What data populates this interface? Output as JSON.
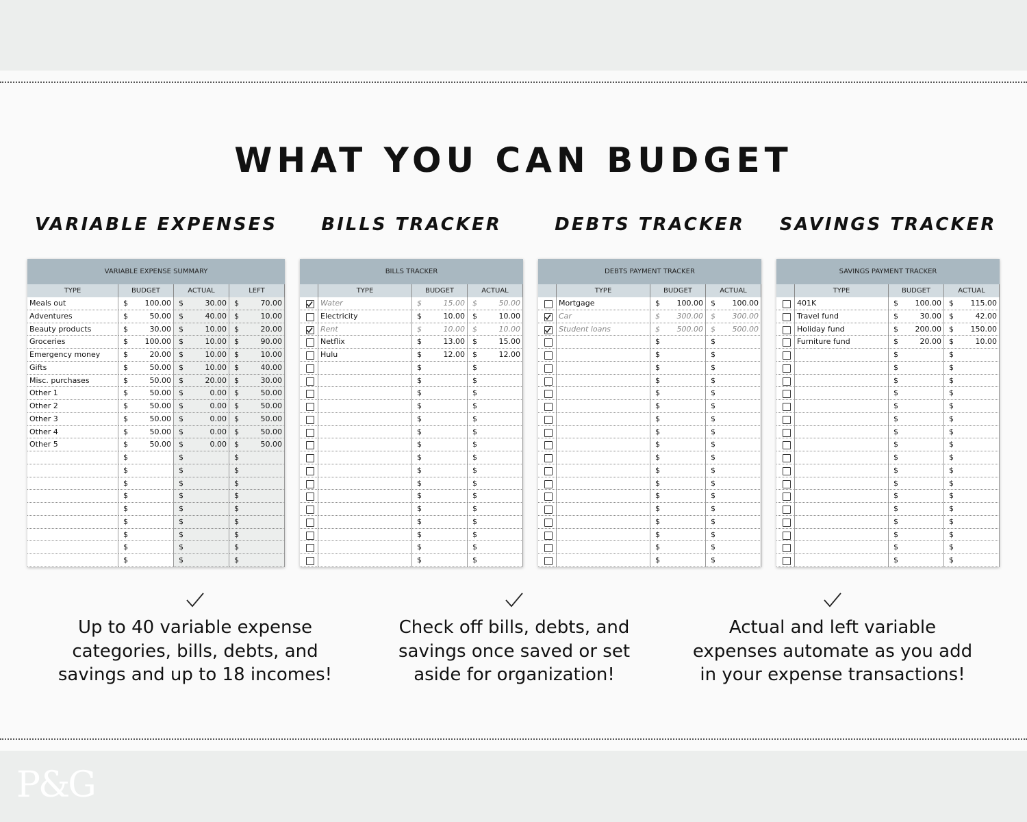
{
  "header": {
    "title": "WHAT YOU CAN BUDGET"
  },
  "currency": "$",
  "sections": [
    {
      "heading": "VARIABLE EXPENSES",
      "table": {
        "title": "VARIABLE EXPENSE SUMMARY",
        "columns": [
          "TYPE",
          "BUDGET",
          "ACTUAL",
          "LEFT"
        ],
        "rows": [
          {
            "cells": [
              "Meals out",
              "100.00",
              "30.00",
              "70.00"
            ]
          },
          {
            "cells": [
              "Adventures",
              "50.00",
              "40.00",
              "10.00"
            ]
          },
          {
            "cells": [
              "Beauty products",
              "30.00",
              "10.00",
              "20.00"
            ]
          },
          {
            "cells": [
              "Groceries",
              "100.00",
              "10.00",
              "90.00"
            ]
          },
          {
            "cells": [
              "Emergency money",
              "20.00",
              "10.00",
              "10.00"
            ]
          },
          {
            "cells": [
              "Gifts",
              "50.00",
              "10.00",
              "40.00"
            ]
          },
          {
            "cells": [
              "Misc. purchases",
              "50.00",
              "20.00",
              "30.00"
            ]
          },
          {
            "cells": [
              "Other 1",
              "50.00",
              "0.00",
              "50.00"
            ]
          },
          {
            "cells": [
              "Other 2",
              "50.00",
              "0.00",
              "50.00"
            ]
          },
          {
            "cells": [
              "Other 3",
              "50.00",
              "0.00",
              "50.00"
            ]
          },
          {
            "cells": [
              "Other 4",
              "50.00",
              "0.00",
              "50.00"
            ]
          },
          {
            "cells": [
              "Other 5",
              "50.00",
              "0.00",
              "50.00"
            ]
          }
        ]
      }
    },
    {
      "heading": "BILLS TRACKER",
      "table": {
        "title": "BILLS TRACKER",
        "columns": [
          "TYPE",
          "BUDGET",
          "ACTUAL"
        ],
        "rows": [
          {
            "checked": true,
            "cells": [
              "Water",
              "15.00",
              "50.00"
            ]
          },
          {
            "checked": false,
            "cells": [
              "Electricity",
              "10.00",
              "10.00"
            ]
          },
          {
            "checked": true,
            "cells": [
              "Rent",
              "10.00",
              "10.00"
            ]
          },
          {
            "checked": false,
            "cells": [
              "Netflix",
              "13.00",
              "15.00"
            ]
          },
          {
            "checked": false,
            "cells": [
              "Hulu",
              "12.00",
              "12.00"
            ]
          }
        ]
      }
    },
    {
      "heading": "DEBTS TRACKER",
      "table": {
        "title": "DEBTS PAYMENT TRACKER",
        "columns": [
          "TYPE",
          "BUDGET",
          "ACTUAL"
        ],
        "rows": [
          {
            "checked": false,
            "cells": [
              "Mortgage",
              "100.00",
              "100.00"
            ]
          },
          {
            "checked": true,
            "cells": [
              "Car",
              "300.00",
              "300.00"
            ]
          },
          {
            "checked": true,
            "cells": [
              "Student loans",
              "500.00",
              "500.00"
            ]
          }
        ]
      }
    },
    {
      "heading": "SAVINGS TRACKER",
      "table": {
        "title": "SAVINGS PAYMENT TRACKER",
        "columns": [
          "TYPE",
          "BUDGET",
          "ACTUAL"
        ],
        "rows": [
          {
            "checked": false,
            "cells": [
              "401K",
              "100.00",
              "115.00"
            ]
          },
          {
            "checked": false,
            "cells": [
              "Travel fund",
              "30.00",
              "42.00"
            ]
          },
          {
            "checked": false,
            "cells": [
              "Holiday fund",
              "200.00",
              "150.00"
            ]
          },
          {
            "checked": false,
            "cells": [
              "Furniture fund",
              "20.00",
              "10.00"
            ]
          }
        ]
      }
    }
  ],
  "features": [
    {
      "lines": [
        "Up to 40 variable expense",
        "categories, bills, debts, and",
        "savings and up to 18 incomes!"
      ]
    },
    {
      "lines": [
        "Check off bills, debts, and",
        "savings once saved or set",
        "aside for organization!"
      ]
    },
    {
      "lines": [
        "Actual and left variable",
        "expenses automate as you add",
        "in your expense transactions!"
      ]
    }
  ],
  "footer": {
    "logo": "P&G"
  }
}
